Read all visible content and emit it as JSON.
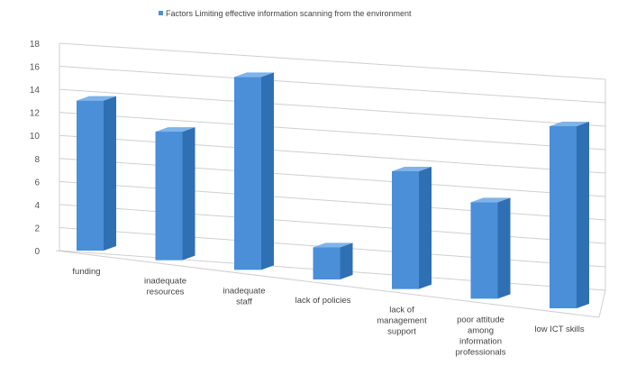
{
  "chart_data": {
    "type": "bar",
    "title": "",
    "xlabel": "",
    "ylabel": "",
    "ylim": [
      0,
      18
    ],
    "yticks": [
      0,
      2,
      4,
      6,
      8,
      10,
      12,
      14,
      16,
      18
    ],
    "grid": true,
    "legend": "top",
    "categories": [
      [
        "funding"
      ],
      [
        "inadequate",
        "resources"
      ],
      [
        "inadequate",
        "staff"
      ],
      [
        "lack of policies"
      ],
      [
        "lack of",
        "management",
        "support"
      ],
      [
        "poor attitude",
        "among",
        "information",
        "professionals"
      ],
      [
        "low ICT skills"
      ]
    ],
    "series": [
      {
        "name": "Factors Limiting effective information scanning from the environment",
        "values": [
          14,
          12,
          18,
          3,
          11,
          9,
          17
        ],
        "color": "#4a8fd8"
      }
    ]
  }
}
